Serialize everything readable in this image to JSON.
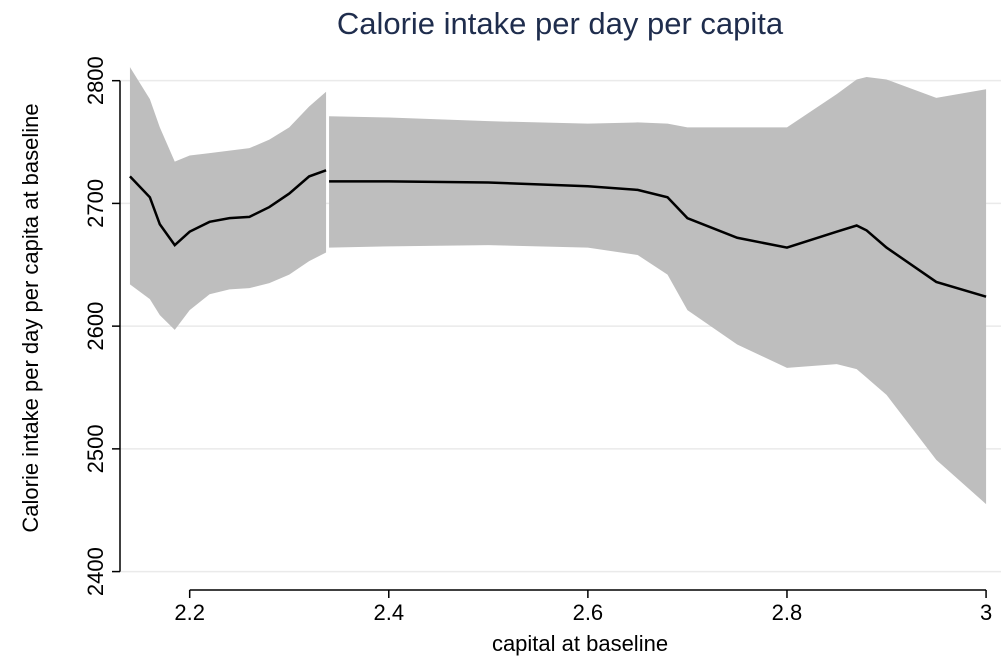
{
  "chart_data": {
    "type": "line",
    "title": "Calorie intake per day per capita",
    "x_label": "capital at baseline",
    "y_label": "Calorie intake per day per capita at baseline",
    "x": [
      2.14,
      2.16,
      2.17,
      2.185,
      2.2,
      2.22,
      2.24,
      2.26,
      2.28,
      2.3,
      2.32,
      2.337,
      null,
      2.34,
      2.4,
      2.5,
      2.6,
      2.65,
      2.68,
      2.7,
      2.75,
      2.8,
      2.85,
      2.87,
      2.88,
      2.9,
      2.95,
      3
    ],
    "values": [
      2722,
      2705,
      2683,
      2666,
      2677,
      2685,
      2688,
      2689,
      2697,
      2708,
      2722,
      2727,
      null,
      2718,
      2718,
      2717,
      2714,
      2711,
      2705,
      2688,
      2672,
      2664,
      2677,
      2682,
      2678,
      2664,
      2636,
      2624
    ],
    "upper": [
      2811,
      2785,
      2762,
      2734,
      2739,
      2741,
      2743,
      2745,
      2752,
      2762,
      2779,
      2791,
      null,
      2771,
      2770,
      2767,
      2765,
      2766,
      2765,
      2762,
      2762,
      2762,
      2789,
      2801,
      2803,
      2801,
      2786,
      2793
    ],
    "lower": [
      2634,
      2622,
      2609,
      2597,
      2613,
      2626,
      2630,
      2631,
      2635,
      2642,
      2653,
      2660,
      null,
      2664,
      2665,
      2666,
      2664,
      2658,
      2642,
      2613,
      2585,
      2566,
      2569,
      2565,
      2558,
      2544,
      2491,
      2455
    ],
    "color": "#000000",
    "band_color": "#bebebe",
    "xlim": [
      2.13,
      3.015
    ],
    "ylim": [
      2385,
      2825
    ],
    "xticks": [
      2.2,
      2.4,
      2.6,
      2.8,
      3
    ],
    "yticks": [
      2400,
      2500,
      2600,
      2700,
      2800
    ],
    "grid": true
  }
}
